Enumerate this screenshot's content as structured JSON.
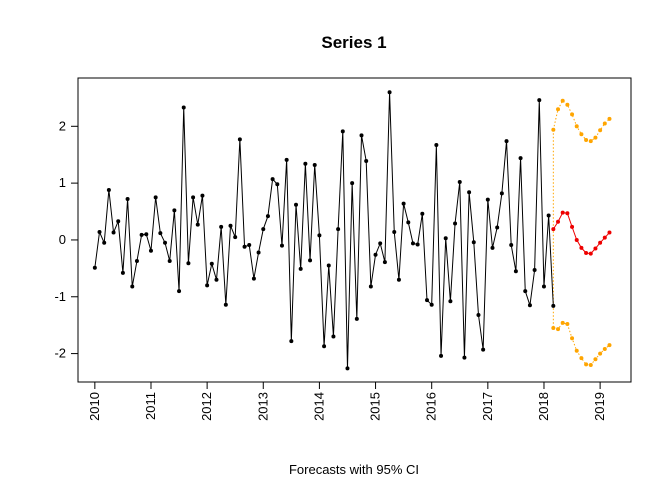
{
  "chart_data": {
    "type": "line",
    "title": "Series 1",
    "xlabel": "Forecasts with 95% CI",
    "ylabel": "",
    "xlim": [
      2009.7,
      2019.55
    ],
    "ylim": [
      -2.5,
      2.85
    ],
    "x_ticks": [
      2010,
      2011,
      2012,
      2013,
      2014,
      2015,
      2016,
      2017,
      2018,
      2019
    ],
    "y_ticks": [
      -2,
      -1,
      0,
      1,
      2
    ],
    "grid": false,
    "legend": "none",
    "series": [
      {
        "role": "observed",
        "color": "#000000",
        "line_style": "solid",
        "start": 2010.0,
        "step": 0.08333,
        "values": [
          -0.49,
          0.14,
          -0.05,
          0.88,
          0.13,
          0.33,
          -0.58,
          0.72,
          -0.82,
          -0.37,
          0.09,
          0.1,
          -0.19,
          0.75,
          0.12,
          -0.05,
          -0.37,
          0.52,
          -0.9,
          2.33,
          -0.41,
          0.75,
          0.27,
          0.78,
          -0.8,
          -0.42,
          -0.7,
          0.23,
          -1.14,
          0.25,
          0.05,
          1.77,
          -0.12,
          -0.09,
          -0.68,
          -0.22,
          0.19,
          0.42,
          1.07,
          0.98,
          -0.1,
          1.41,
          -1.78,
          0.62,
          -0.51,
          1.34,
          -0.36,
          1.32,
          0.08,
          -1.87,
          -0.45,
          -1.7,
          0.19,
          1.91,
          -2.26,
          1.0,
          -1.39,
          1.84,
          1.39,
          -0.82,
          -0.26,
          -0.06,
          -0.39,
          2.6,
          0.14,
          -0.7,
          0.64,
          0.31,
          -0.06,
          -0.08,
          0.46,
          -1.06,
          -1.14,
          1.67,
          -2.04,
          0.03,
          -1.08,
          0.29,
          1.02,
          -2.07,
          0.84,
          -0.04,
          -1.32,
          -1.93,
          0.71,
          -0.14,
          0.22,
          0.82,
          1.74,
          -0.09,
          -0.55,
          1.44,
          -0.9,
          -1.15,
          -0.53,
          2.46,
          -0.82,
          0.43,
          -1.16
        ]
      },
      {
        "role": "forecast",
        "color": "#ee0000",
        "line_style": "solid",
        "start": 2018.1667,
        "step": 0.08333,
        "values": [
          0.19,
          0.32,
          0.48,
          0.47,
          0.23,
          0.0,
          -0.14,
          -0.23,
          -0.24,
          -0.15,
          -0.05,
          0.04,
          0.13
        ]
      },
      {
        "role": "upper-95",
        "color": "#ffa500",
        "line_style": "dotted",
        "start": 2018.1667,
        "step": 0.08333,
        "values": [
          1.94,
          2.3,
          2.45,
          2.38,
          2.21,
          2.0,
          1.86,
          1.76,
          1.74,
          1.8,
          1.93,
          2.05,
          2.13
        ]
      },
      {
        "role": "lower-95",
        "color": "#ffa500",
        "line_style": "dotted",
        "start": 2018.1667,
        "step": 0.08333,
        "values": [
          -1.55,
          -1.57,
          -1.46,
          -1.48,
          -1.73,
          -1.95,
          -2.08,
          -2.19,
          -2.2,
          -2.1,
          -2.0,
          -1.92,
          -1.85
        ]
      }
    ],
    "connector": {
      "color": "#ffa500",
      "line_style": "dotted",
      "x": [
        2018.1667,
        2018.1667
      ],
      "y": [
        1.94,
        -1.55
      ]
    }
  }
}
